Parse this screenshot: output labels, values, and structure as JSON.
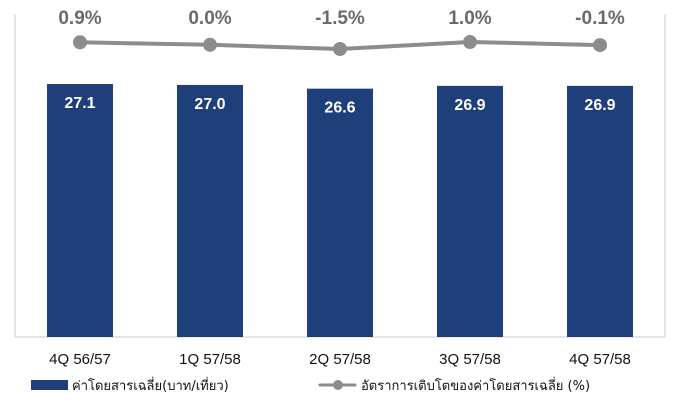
{
  "chart_data": {
    "type": "bar",
    "title": "",
    "xlabel": "",
    "ylabel": "",
    "categories": [
      "4Q 56/57",
      "1Q 57/58",
      "2Q 57/58",
      "3Q 57/58",
      "4Q 57/58"
    ],
    "series": [
      {
        "name": "ค่าโดยสารเฉลี่ย(บาท/เที่ยว)",
        "type": "bar",
        "values": [
          27.1,
          27.0,
          26.6,
          26.9,
          26.9
        ],
        "labels": [
          "27.1",
          "27.0",
          "26.6",
          "26.9",
          "26.9"
        ],
        "color": "#1f3f7a"
      },
      {
        "name": "อัตราการเติบโตของค่าโดยสารเฉลี่ย (%)",
        "type": "line",
        "values": [
          0.9,
          0.0,
          -1.5,
          1.0,
          -0.1
        ],
        "labels": [
          "0.9%",
          "0.0%",
          "-1.5%",
          "1.0%",
          "-0.1%"
        ],
        "color": "#8c8c8c"
      }
    ],
    "grid": false,
    "legend": "bottom"
  }
}
